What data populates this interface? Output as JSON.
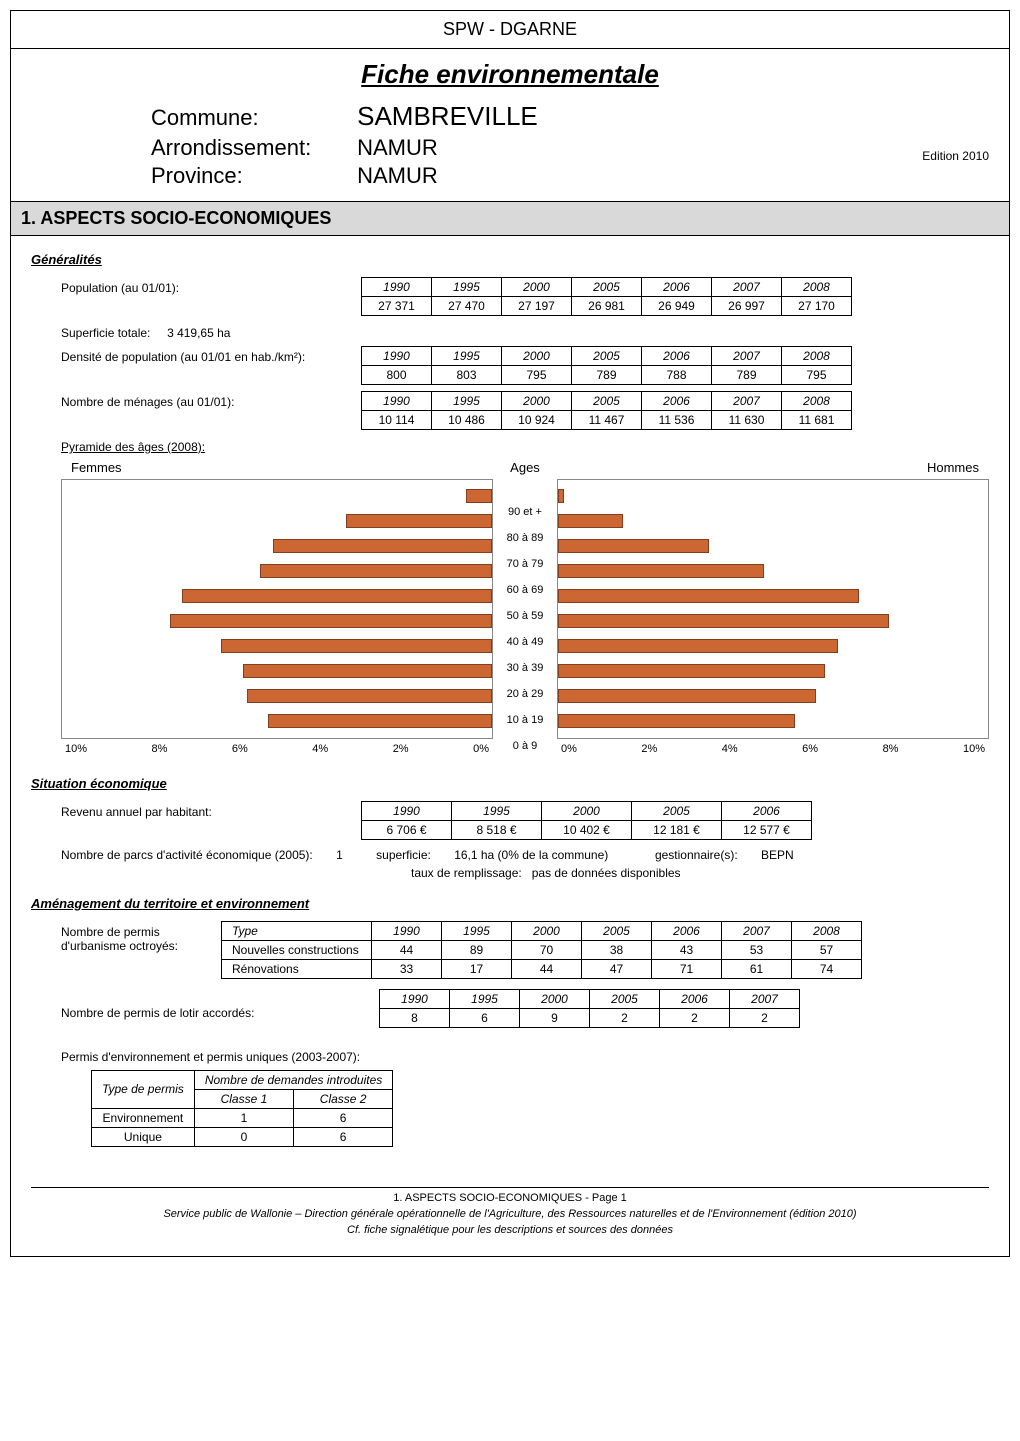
{
  "header": {
    "org": "SPW - DGARNE",
    "title": "Fiche environnementale",
    "commune_label": "Commune:",
    "commune": "SAMBREVILLE",
    "arrondissement_label": "Arrondissement:",
    "arrondissement": "NAMUR",
    "province_label": "Province:",
    "province": "NAMUR",
    "edition": "Edition  2010"
  },
  "section1_title": "1. ASPECTS SOCIO-ECONOMIQUES",
  "generalites": {
    "title": "Généralités",
    "pop_label": "Population (au 01/01):",
    "pop": {
      "years": [
        "1990",
        "1995",
        "2000",
        "2005",
        "2006",
        "2007",
        "2008"
      ],
      "values": [
        "27 371",
        "27 470",
        "27 197",
        "26 981",
        "26 949",
        "26 997",
        "27 170"
      ]
    },
    "superficie_label": "Superficie totale:",
    "superficie_value": "3 419,65 ha",
    "densite_label": "Densité de population (au 01/01 en hab./km²):",
    "densite": {
      "years": [
        "1990",
        "1995",
        "2000",
        "2005",
        "2006",
        "2007",
        "2008"
      ],
      "values": [
        "800",
        "803",
        "795",
        "789",
        "788",
        "789",
        "795"
      ]
    },
    "menages_label": "Nombre de ménages (au 01/01):",
    "menages": {
      "years": [
        "1990",
        "1995",
        "2000",
        "2005",
        "2006",
        "2007",
        "2008"
      ],
      "values": [
        "10 114",
        "10 486",
        "10 924",
        "11 467",
        "11 536",
        "11 630",
        "11 681"
      ]
    },
    "pyramide_title": "Pyramide des âges (2008):",
    "pyramide": {
      "femmes_label": "Femmes",
      "hommes_label": "Hommes",
      "ages_label": "Ages",
      "age_bands": [
        "90 et +",
        "80 à 89",
        "70 à 79",
        "60 à 69",
        "50 à 59",
        "40 à 49",
        "30 à 39",
        "20 à 29",
        "10 à 19",
        "0 à 9"
      ],
      "femmes_pct": [
        0.6,
        3.4,
        5.1,
        5.4,
        7.2,
        7.5,
        6.3,
        5.8,
        5.7,
        5.2
      ],
      "hommes_pct": [
        0.15,
        1.5,
        3.5,
        4.8,
        7.0,
        7.7,
        6.5,
        6.2,
        6.0,
        5.5
      ],
      "x_ticks_left": [
        "10%",
        "8%",
        "6%",
        "4%",
        "2%",
        "0%"
      ],
      "x_ticks_right": [
        "0%",
        "2%",
        "4%",
        "6%",
        "8%",
        "10%"
      ],
      "bar_color": "#cc6633",
      "bar_border": "#804020",
      "grid_color": "#cccccc"
    }
  },
  "situation": {
    "title": "Situation économique",
    "revenu_label": "Revenu annuel par habitant:",
    "revenu": {
      "years": [
        "1990",
        "1995",
        "2000",
        "2005",
        "2006"
      ],
      "values": [
        "6 706 €",
        "8 518 €",
        "10 402 €",
        "12 181 €",
        "12 577 €"
      ]
    },
    "parcs_label": "Nombre de parcs d'activité économique (2005):",
    "parcs_count": "1",
    "superficie_label": "superficie:",
    "superficie_value": "16,1 ha (0% de la commune)",
    "gestionnaire_label": "gestionnaire(s):",
    "gestionnaire_value": "BEPN",
    "taux_label": "taux de remplissage:",
    "taux_value": "pas de données disponibles"
  },
  "amenagement": {
    "title": "Aménagement du territoire et environnement",
    "permis_urb_label1": "Nombre de permis",
    "permis_urb_label2": "d'urbanisme octroyés:",
    "urb": {
      "type_header": "Type",
      "years": [
        "1990",
        "1995",
        "2000",
        "2005",
        "2006",
        "2007",
        "2008"
      ],
      "rows": [
        {
          "type": "Nouvelles constructions",
          "vals": [
            "44",
            "89",
            "70",
            "38",
            "43",
            "53",
            "57"
          ]
        },
        {
          "type": "Rénovations",
          "vals": [
            "33",
            "17",
            "44",
            "47",
            "71",
            "61",
            "74"
          ]
        }
      ]
    },
    "lotir_label": "Nombre de permis de lotir accordés:",
    "lotir": {
      "years": [
        "1990",
        "1995",
        "2000",
        "2005",
        "2006",
        "2007"
      ],
      "values": [
        "8",
        "6",
        "9",
        "2",
        "2",
        "2"
      ]
    },
    "permenv_label": "Permis d'environnement et permis uniques (2003-2007):",
    "permenv": {
      "h1": "Type de permis",
      "h2": "Nombre de demandes  introduites",
      "c1": "Classe 1",
      "c2": "Classe 2",
      "rows": [
        {
          "type": "Environnement",
          "c1": "1",
          "c2": "6"
        },
        {
          "type": "Unique",
          "c1": "0",
          "c2": "6"
        }
      ]
    }
  },
  "footer": {
    "page": "1. ASPECTS SOCIO-ECONOMIQUES - Page 1",
    "line1": "Service public de Wallonie – Direction générale opérationnelle de l'Agriculture, des Ressources naturelles et de l'Environnement (édition 2010)",
    "line2": "Cf. fiche signalétique pour les descriptions et sources des données"
  }
}
